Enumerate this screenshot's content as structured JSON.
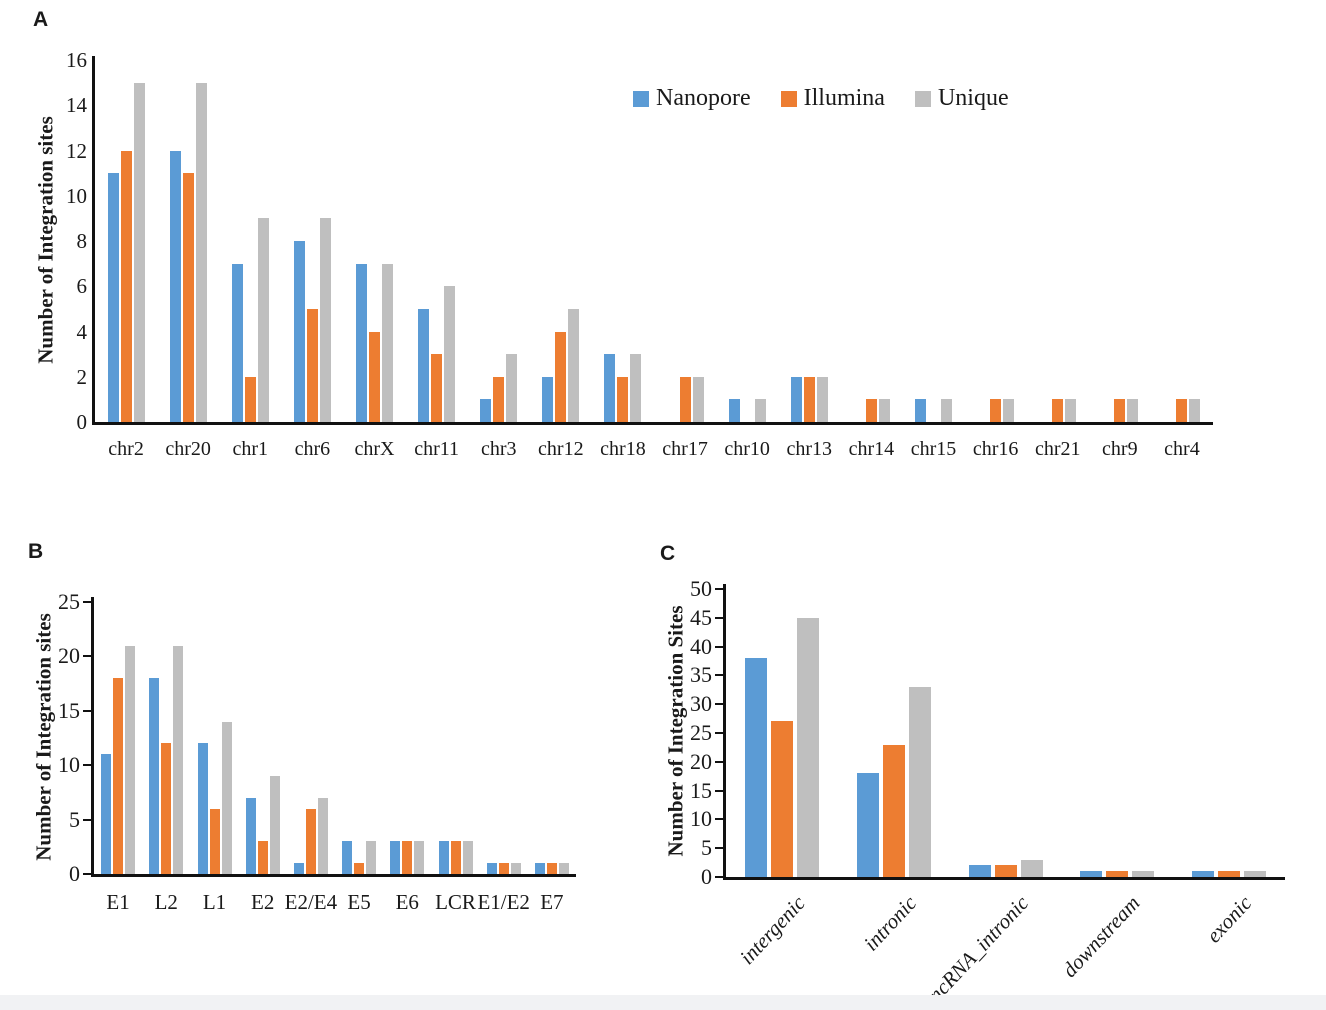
{
  "figure": {
    "background": "#ffffff",
    "text_color": "#1a1a1a",
    "axis_color": "#111111",
    "panel_labels": [
      "A",
      "B",
      "C"
    ]
  },
  "legend": {
    "position": "top-right-of-panel-A",
    "items": [
      {
        "label": "Nanopore",
        "color": "#5b9bd5"
      },
      {
        "label": "Illumina",
        "color": "#ed7d31"
      },
      {
        "label": "Unique",
        "color": "#bfbfbf"
      }
    ]
  },
  "chart_data": [
    {
      "panel": "A",
      "type": "bar",
      "title": "",
      "xlabel": "",
      "ylabel": "Number of Integration sites",
      "ylim": [
        0,
        16
      ],
      "yticks": [
        0,
        2,
        4,
        6,
        8,
        10,
        12,
        14,
        16
      ],
      "grid": false,
      "legend_position": "top-right",
      "categories": [
        "chr2",
        "chr20",
        "chr1",
        "chr6",
        "chrX",
        "chr11",
        "chr3",
        "chr12",
        "chr18",
        "chr17",
        "chr10",
        "chr13",
        "chr14",
        "chr15",
        "chr16",
        "chr21",
        "chr9",
        "chr4"
      ],
      "series": [
        {
          "name": "Nanopore",
          "color": "#5b9bd5",
          "values": [
            11,
            12,
            7,
            8,
            7,
            5,
            1,
            2,
            3,
            0,
            1,
            2,
            0,
            1,
            0,
            0,
            0,
            0
          ]
        },
        {
          "name": "Illumina",
          "color": "#ed7d31",
          "values": [
            12,
            11,
            2,
            5,
            4,
            3,
            2,
            4,
            2,
            2,
            0,
            2,
            1,
            0,
            1,
            1,
            1,
            1
          ]
        },
        {
          "name": "Unique",
          "color": "#bfbfbf",
          "values": [
            15,
            15,
            9,
            9,
            7,
            6,
            3,
            5,
            3,
            2,
            1,
            2,
            1,
            1,
            1,
            1,
            1,
            1
          ]
        }
      ]
    },
    {
      "panel": "B",
      "type": "bar",
      "title": "",
      "xlabel": "",
      "ylabel": "Number of Integration sites",
      "ylim": [
        0,
        25
      ],
      "yticks": [
        0,
        5,
        10,
        15,
        20,
        25
      ],
      "grid": false,
      "legend_position": "none",
      "categories": [
        "E1",
        "L2",
        "L1",
        "E2",
        "E2/E4",
        "E5",
        "E6",
        "LCR",
        "E1/E2",
        "E7"
      ],
      "series": [
        {
          "name": "Nanopore",
          "color": "#5b9bd5",
          "values": [
            11,
            18,
            12,
            7,
            1,
            3,
            3,
            3,
            1,
            1
          ]
        },
        {
          "name": "Illumina",
          "color": "#ed7d31",
          "values": [
            18,
            12,
            6,
            3,
            6,
            1,
            3,
            3,
            1,
            1
          ]
        },
        {
          "name": "Unique",
          "color": "#bfbfbf",
          "values": [
            21,
            21,
            14,
            9,
            7,
            3,
            3,
            3,
            1,
            1
          ]
        }
      ]
    },
    {
      "panel": "C",
      "type": "bar",
      "title": "",
      "xlabel": "",
      "ylabel": "Number of Integration Sites",
      "ylim": [
        0,
        50
      ],
      "yticks": [
        0,
        5,
        10,
        15,
        20,
        25,
        30,
        35,
        40,
        45,
        50
      ],
      "grid": false,
      "legend_position": "none",
      "x_tick_style": "rotated-italic",
      "categories": [
        "intergenic",
        "intronic",
        "ncRNA_intronic",
        "downstream",
        "exonic"
      ],
      "series": [
        {
          "name": "Nanopore",
          "color": "#5b9bd5",
          "values": [
            38,
            18,
            2,
            1,
            1
          ]
        },
        {
          "name": "Illumina",
          "color": "#ed7d31",
          "values": [
            27,
            23,
            2,
            1,
            1
          ]
        },
        {
          "name": "Unique",
          "color": "#bfbfbf",
          "values": [
            45,
            33,
            3,
            1,
            1
          ]
        }
      ]
    }
  ]
}
